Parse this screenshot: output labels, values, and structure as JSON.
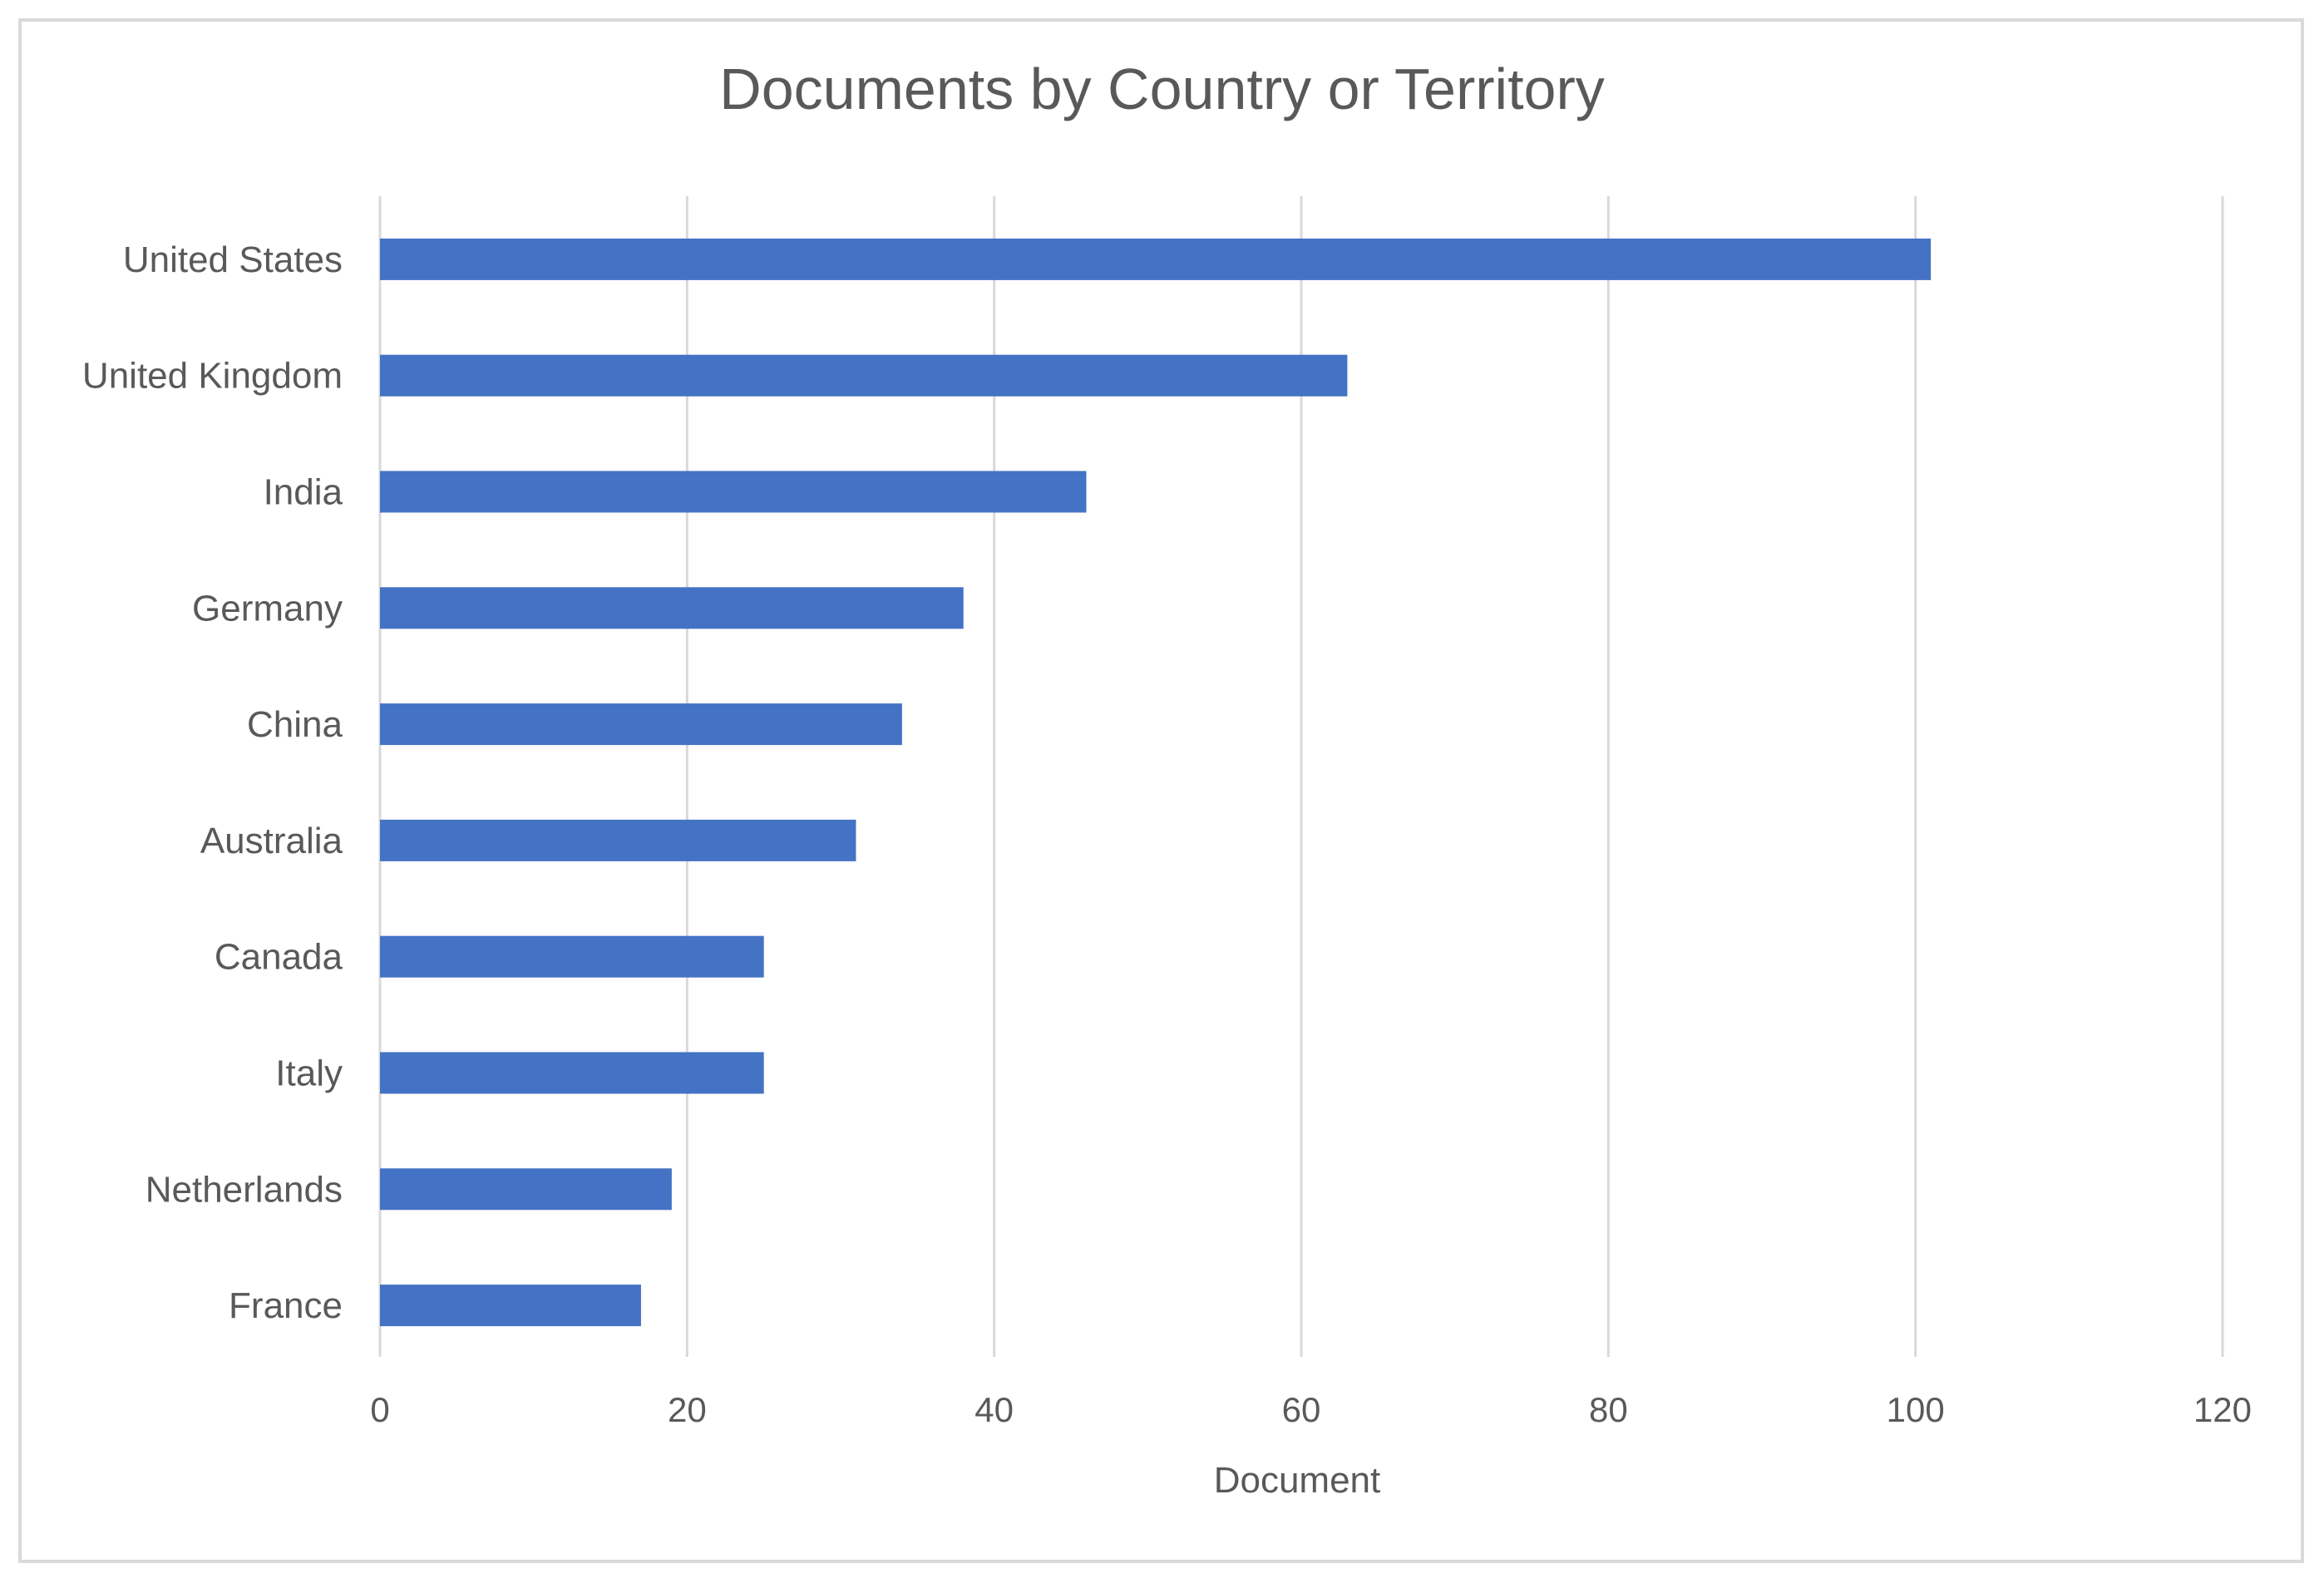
{
  "chart_data": {
    "type": "bar",
    "orientation": "horizontal",
    "title": "Documents by Country or Territory",
    "xlabel": "Document",
    "ylabel": "",
    "categories": [
      "United States",
      "United Kingdom",
      "India",
      "Germany",
      "China",
      "Australia",
      "Canada",
      "Italy",
      "Netherlands",
      "France"
    ],
    "values": [
      101,
      63,
      46,
      38,
      34,
      31,
      25,
      25,
      19,
      17
    ],
    "xlim": [
      0,
      120
    ],
    "xticks": [
      0,
      20,
      40,
      60,
      80,
      100,
      120
    ],
    "grid": true,
    "legend": "none",
    "bar_color": "#4472c4"
  }
}
